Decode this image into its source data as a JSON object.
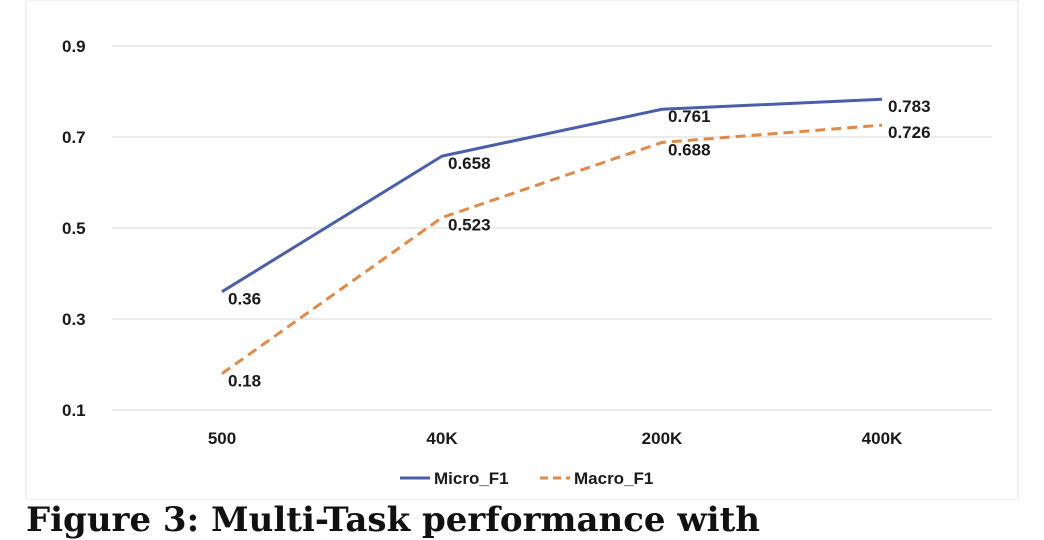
{
  "chart_data": {
    "type": "line",
    "categories": [
      "500",
      "40K",
      "200K",
      "400K"
    ],
    "series": [
      {
        "name": "Micro_F1",
        "values": [
          0.36,
          0.658,
          0.761,
          0.783
        ],
        "labels": [
          "0.36",
          "0.658",
          "0.761",
          "0.783"
        ],
        "color": "#4a5fa8",
        "dash": "solid"
      },
      {
        "name": "Macro_F1",
        "values": [
          0.18,
          0.523,
          0.688,
          0.726
        ],
        "labels": [
          "0.18",
          "0.523",
          "0.688",
          "0.726"
        ],
        "color": "#e08a4a",
        "dash": "dashed"
      }
    ],
    "yticks": [
      "0.1",
      "0.3",
      "0.5",
      "0.7",
      "0.9"
    ],
    "ylim": [
      0.1,
      0.9
    ],
    "grid": "horizontal",
    "legend": "bottom-center",
    "title": "",
    "xlabel": "",
    "ylabel": ""
  },
  "caption": "Figure 3: Multi-Task performance with"
}
